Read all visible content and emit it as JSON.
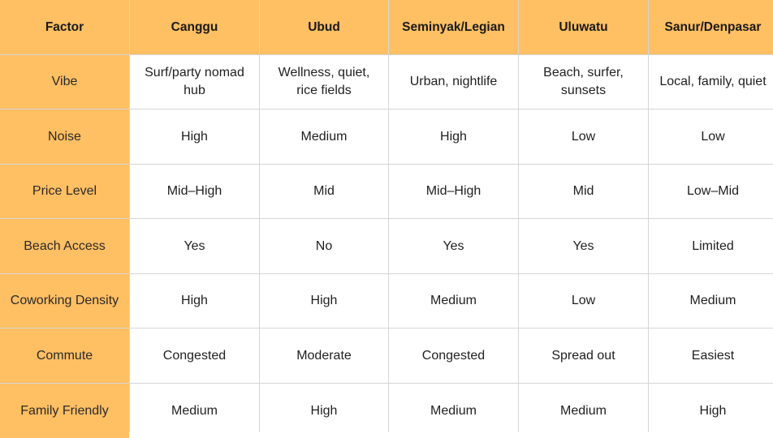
{
  "table": {
    "headers": [
      "Factor",
      "Canggu",
      "Ubud",
      "Seminyak/Legian",
      "Uluwatu",
      "Sanur/Denpasar"
    ],
    "rows": [
      {
        "factor": "Vibe",
        "values": [
          "Surf/party nomad hub",
          "Wellness, quiet, rice fields",
          "Urban, nightlife",
          "Beach, surfer, sunsets",
          "Local, family, quiet"
        ]
      },
      {
        "factor": "Noise",
        "values": [
          "High",
          "Medium",
          "High",
          "Low",
          "Low"
        ]
      },
      {
        "factor": "Price Level",
        "values": [
          "Mid–High",
          "Mid",
          "Mid–High",
          "Mid",
          "Low–Mid"
        ]
      },
      {
        "factor": "Beach Access",
        "values": [
          "Yes",
          "No",
          "Yes",
          "Yes",
          "Limited"
        ]
      },
      {
        "factor": "Coworking Density",
        "values": [
          "High",
          "High",
          "Medium",
          "Low",
          "Medium"
        ]
      },
      {
        "factor": "Commute",
        "values": [
          "Congested",
          "Moderate",
          "Congested",
          "Spread out",
          "Easiest"
        ]
      },
      {
        "factor": "Family Friendly",
        "values": [
          "Medium",
          "High",
          "Medium",
          "Medium",
          "High"
        ]
      }
    ]
  },
  "colors": {
    "header_bg": "#ffbf63",
    "cell_bg": "#ffffff",
    "border": "#d6d6d6"
  }
}
